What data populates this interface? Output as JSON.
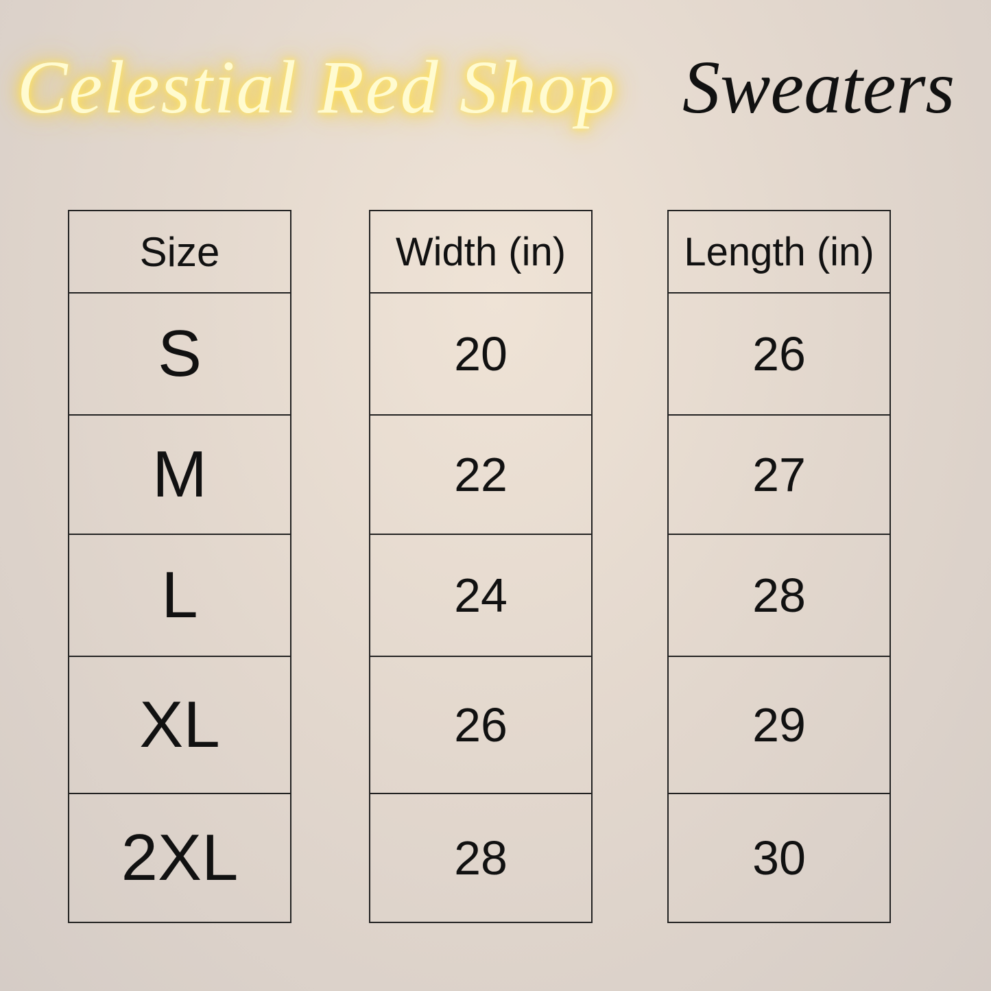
{
  "brand": "Celestial Red Shop",
  "category": "Sweaters",
  "table": {
    "headers": [
      "Size",
      "Width (in)",
      "Length (in)"
    ],
    "rows": [
      [
        "S",
        "20",
        "26"
      ],
      [
        "M",
        "22",
        "27"
      ],
      [
        "L",
        "24",
        "28"
      ],
      [
        "XL",
        "26",
        "29"
      ],
      [
        "2XL",
        "28",
        "30"
      ]
    ]
  }
}
